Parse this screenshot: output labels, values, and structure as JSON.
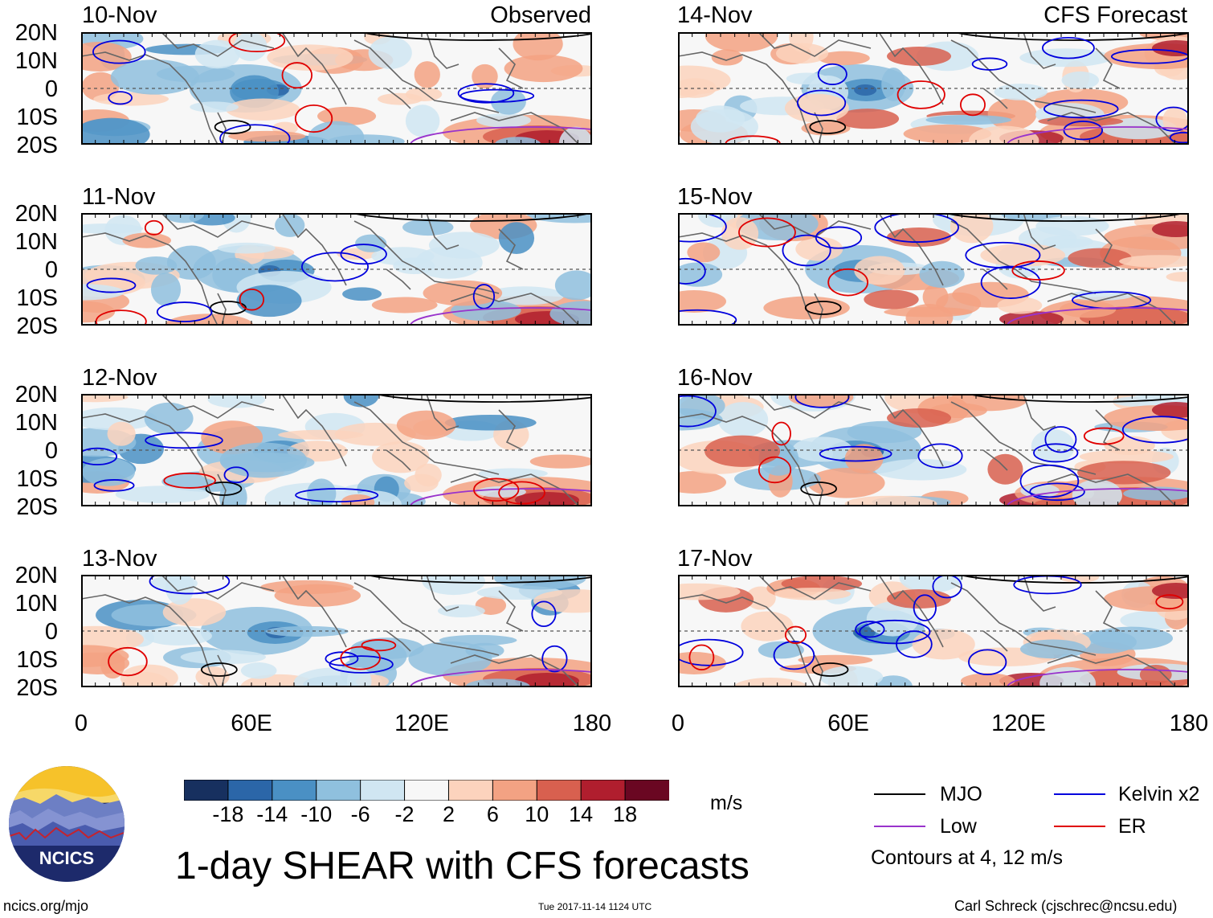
{
  "observed_label": "Observed",
  "forecast_label": "CFS Forecast",
  "lat_labels": [
    "20N",
    "10N",
    "0",
    "10S",
    "20S"
  ],
  "lon_labels": [
    "0",
    "60E",
    "120E",
    "180"
  ],
  "panels_left": [
    {
      "date": "10-Nov"
    },
    {
      "date": "11-Nov"
    },
    {
      "date": "12-Nov"
    },
    {
      "date": "13-Nov"
    }
  ],
  "panels_right": [
    {
      "date": "14-Nov"
    },
    {
      "date": "15-Nov"
    },
    {
      "date": "16-Nov"
    },
    {
      "date": "17-Nov"
    }
  ],
  "colorbar": {
    "colors": [
      "#17305f",
      "#2b66a8",
      "#4a90c4",
      "#8fc0de",
      "#d0e6f2",
      "#f7f7f7",
      "#fcd3bd",
      "#f3a283",
      "#d8604f",
      "#b01e2e",
      "#6a0722"
    ],
    "labels": [
      "-18",
      "-14",
      "-10",
      "-6",
      "-2",
      "2",
      "6",
      "10",
      "14",
      "18"
    ],
    "units": "m/s"
  },
  "legend": {
    "items": [
      {
        "label": "MJO",
        "color": "#000000"
      },
      {
        "label": "Kelvin x2",
        "color": "#0000dd"
      },
      {
        "label": "Low",
        "color": "#9933cc"
      },
      {
        "label": "ER",
        "color": "#e00000"
      }
    ],
    "note": "Contours at 4, 12 m/s"
  },
  "logo_text": "NCICS",
  "main_title": "1-day SHEAR with CFS forecasts",
  "footer": {
    "left": "ncics.org/mjo",
    "center": "Tue 2017-11-14 1124 UTC",
    "right": "Carl Schreck (cjschrec@ncsu.edu)"
  }
}
